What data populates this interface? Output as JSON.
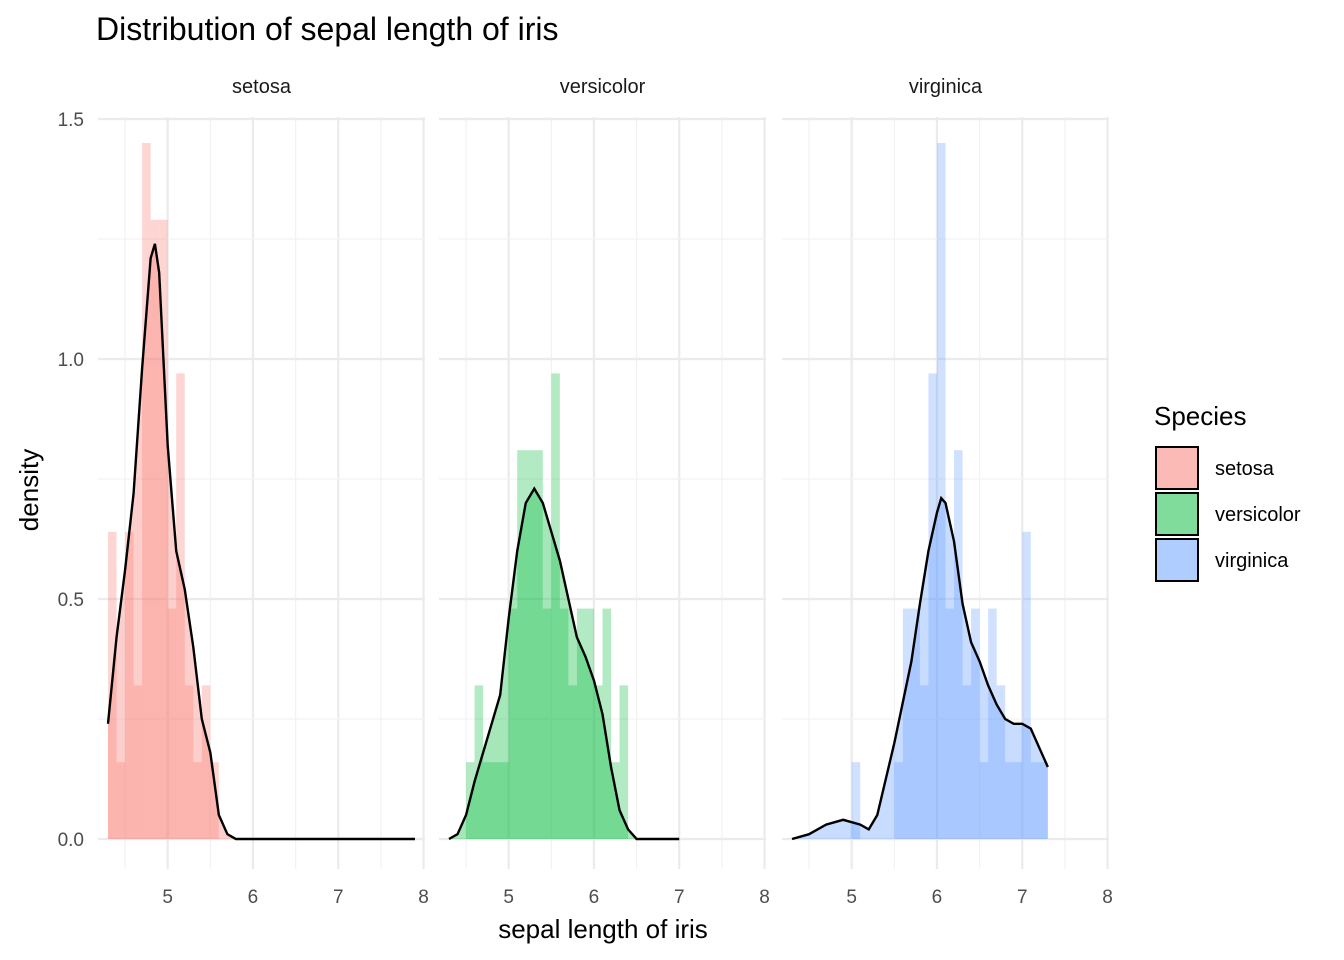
{
  "chart_data": {
    "type": "histogram+density",
    "title": "Distribution of sepal length of iris",
    "xlabel": "sepal length of iris",
    "ylabel": "density",
    "xlim": [
      4.3,
      7.9
    ],
    "ylim": [
      0,
      1.5
    ],
    "x_ticks": [
      "5",
      "6",
      "7",
      "8"
    ],
    "y_ticks": [
      "0.0",
      "0.5",
      "1.0",
      "1.5"
    ],
    "grid": true,
    "legend": {
      "title": "Species",
      "position": "right",
      "items": [
        {
          "label": "setosa",
          "color": "#F8766D"
        },
        {
          "label": "versicolor",
          "color": "#00BA38"
        },
        {
          "label": "virginica",
          "color": "#619CFF"
        }
      ]
    },
    "panels": [
      {
        "name": "setosa",
        "color": "#F8766D",
        "hist": [
          {
            "x": 4.3,
            "y": 0.64
          },
          {
            "x": 4.4,
            "y": 0.16
          },
          {
            "x": 4.5,
            "y": 0.64
          },
          {
            "x": 4.6,
            "y": 0.32
          },
          {
            "x": 4.7,
            "y": 1.45
          },
          {
            "x": 4.8,
            "y": 1.29
          },
          {
            "x": 4.9,
            "y": 1.29
          },
          {
            "x": 5.0,
            "y": 0.48
          },
          {
            "x": 5.1,
            "y": 0.97
          },
          {
            "x": 5.2,
            "y": 0.32
          },
          {
            "x": 5.3,
            "y": 0.16
          },
          {
            "x": 5.4,
            "y": 0.32
          },
          {
            "x": 5.5,
            "y": 0.16
          }
        ],
        "density": [
          {
            "x": 4.3,
            "y": 0.24
          },
          {
            "x": 4.4,
            "y": 0.42
          },
          {
            "x": 4.5,
            "y": 0.56
          },
          {
            "x": 4.6,
            "y": 0.72
          },
          {
            "x": 4.7,
            "y": 0.98
          },
          {
            "x": 4.8,
            "y": 1.21
          },
          {
            "x": 4.85,
            "y": 1.24
          },
          {
            "x": 4.9,
            "y": 1.18
          },
          {
            "x": 5.0,
            "y": 0.82
          },
          {
            "x": 5.1,
            "y": 0.6
          },
          {
            "x": 5.2,
            "y": 0.52
          },
          {
            "x": 5.3,
            "y": 0.4
          },
          {
            "x": 5.4,
            "y": 0.25
          },
          {
            "x": 5.5,
            "y": 0.18
          },
          {
            "x": 5.6,
            "y": 0.05
          },
          {
            "x": 5.7,
            "y": 0.01
          },
          {
            "x": 5.8,
            "y": 0.0
          },
          {
            "x": 6.5,
            "y": 0.0
          },
          {
            "x": 7.9,
            "y": 0.0
          }
        ]
      },
      {
        "name": "versicolor",
        "color": "#00BA38",
        "hist": [
          {
            "x": 4.3,
            "y": 0
          },
          {
            "x": 4.4,
            "y": 0
          },
          {
            "x": 4.5,
            "y": 0.16
          },
          {
            "x": 4.6,
            "y": 0.32
          },
          {
            "x": 4.7,
            "y": 0.16
          },
          {
            "x": 4.8,
            "y": 0.16
          },
          {
            "x": 4.9,
            "y": 0.16
          },
          {
            "x": 5.0,
            "y": 0.48
          },
          {
            "x": 5.1,
            "y": 0.81
          },
          {
            "x": 5.2,
            "y": 0.81
          },
          {
            "x": 5.3,
            "y": 0.81
          },
          {
            "x": 5.4,
            "y": 0.48
          },
          {
            "x": 5.5,
            "y": 0.97
          },
          {
            "x": 5.6,
            "y": 0.48
          },
          {
            "x": 5.7,
            "y": 0.32
          },
          {
            "x": 5.8,
            "y": 0.48
          },
          {
            "x": 5.9,
            "y": 0.48
          },
          {
            "x": 6.0,
            "y": 0.32
          },
          {
            "x": 6.1,
            "y": 0.48
          },
          {
            "x": 6.2,
            "y": 0.16
          },
          {
            "x": 6.3,
            "y": 0.32
          }
        ],
        "density": [
          {
            "x": 4.3,
            "y": 0.0
          },
          {
            "x": 4.4,
            "y": 0.01
          },
          {
            "x": 4.5,
            "y": 0.05
          },
          {
            "x": 4.6,
            "y": 0.12
          },
          {
            "x": 4.7,
            "y": 0.18
          },
          {
            "x": 4.8,
            "y": 0.24
          },
          {
            "x": 4.9,
            "y": 0.3
          },
          {
            "x": 5.0,
            "y": 0.46
          },
          {
            "x": 5.1,
            "y": 0.6
          },
          {
            "x": 5.2,
            "y": 0.7
          },
          {
            "x": 5.3,
            "y": 0.73
          },
          {
            "x": 5.4,
            "y": 0.7
          },
          {
            "x": 5.5,
            "y": 0.64
          },
          {
            "x": 5.6,
            "y": 0.58
          },
          {
            "x": 5.7,
            "y": 0.5
          },
          {
            "x": 5.8,
            "y": 0.42
          },
          {
            "x": 5.9,
            "y": 0.38
          },
          {
            "x": 6.0,
            "y": 0.33
          },
          {
            "x": 6.1,
            "y": 0.26
          },
          {
            "x": 6.2,
            "y": 0.15
          },
          {
            "x": 6.3,
            "y": 0.06
          },
          {
            "x": 6.4,
            "y": 0.02
          },
          {
            "x": 6.5,
            "y": 0.0
          },
          {
            "x": 7.0,
            "y": 0.0
          }
        ]
      },
      {
        "name": "virginica",
        "color": "#619CFF",
        "hist": [
          {
            "x": 4.3,
            "y": 0
          },
          {
            "x": 4.4,
            "y": 0
          },
          {
            "x": 4.5,
            "y": 0
          },
          {
            "x": 4.6,
            "y": 0
          },
          {
            "x": 4.7,
            "y": 0
          },
          {
            "x": 4.8,
            "y": 0
          },
          {
            "x": 4.9,
            "y": 0
          },
          {
            "x": 5.0,
            "y": 0.16
          },
          {
            "x": 5.1,
            "y": 0
          },
          {
            "x": 5.2,
            "y": 0
          },
          {
            "x": 5.3,
            "y": 0
          },
          {
            "x": 5.4,
            "y": 0
          },
          {
            "x": 5.5,
            "y": 0.16
          },
          {
            "x": 5.6,
            "y": 0.48
          },
          {
            "x": 5.7,
            "y": 0.48
          },
          {
            "x": 5.8,
            "y": 0.32
          },
          {
            "x": 5.9,
            "y": 0.97
          },
          {
            "x": 6.0,
            "y": 1.45
          },
          {
            "x": 6.1,
            "y": 0.48
          },
          {
            "x": 6.2,
            "y": 0.81
          },
          {
            "x": 6.3,
            "y": 0.32
          },
          {
            "x": 6.4,
            "y": 0.48
          },
          {
            "x": 6.5,
            "y": 0.16
          },
          {
            "x": 6.6,
            "y": 0.48
          },
          {
            "x": 6.7,
            "y": 0.32
          },
          {
            "x": 6.8,
            "y": 0.16
          },
          {
            "x": 6.9,
            "y": 0.16
          },
          {
            "x": 7.0,
            "y": 0.64
          },
          {
            "x": 7.1,
            "y": 0.16
          },
          {
            "x": 7.2,
            "y": 0.16
          }
        ],
        "density": [
          {
            "x": 4.3,
            "y": 0.0
          },
          {
            "x": 4.5,
            "y": 0.01
          },
          {
            "x": 4.7,
            "y": 0.03
          },
          {
            "x": 4.9,
            "y": 0.04
          },
          {
            "x": 5.1,
            "y": 0.03
          },
          {
            "x": 5.2,
            "y": 0.02
          },
          {
            "x": 5.3,
            "y": 0.05
          },
          {
            "x": 5.5,
            "y": 0.2
          },
          {
            "x": 5.7,
            "y": 0.37
          },
          {
            "x": 5.8,
            "y": 0.49
          },
          {
            "x": 5.9,
            "y": 0.6
          },
          {
            "x": 6.0,
            "y": 0.68
          },
          {
            "x": 6.05,
            "y": 0.71
          },
          {
            "x": 6.1,
            "y": 0.7
          },
          {
            "x": 6.2,
            "y": 0.62
          },
          {
            "x": 6.3,
            "y": 0.49
          },
          {
            "x": 6.4,
            "y": 0.41
          },
          {
            "x": 6.5,
            "y": 0.37
          },
          {
            "x": 6.6,
            "y": 0.32
          },
          {
            "x": 6.7,
            "y": 0.28
          },
          {
            "x": 6.8,
            "y": 0.25
          },
          {
            "x": 6.9,
            "y": 0.24
          },
          {
            "x": 7.0,
            "y": 0.24
          },
          {
            "x": 7.1,
            "y": 0.23
          },
          {
            "x": 7.2,
            "y": 0.19
          },
          {
            "x": 7.3,
            "y": 0.15
          }
        ]
      }
    ]
  }
}
